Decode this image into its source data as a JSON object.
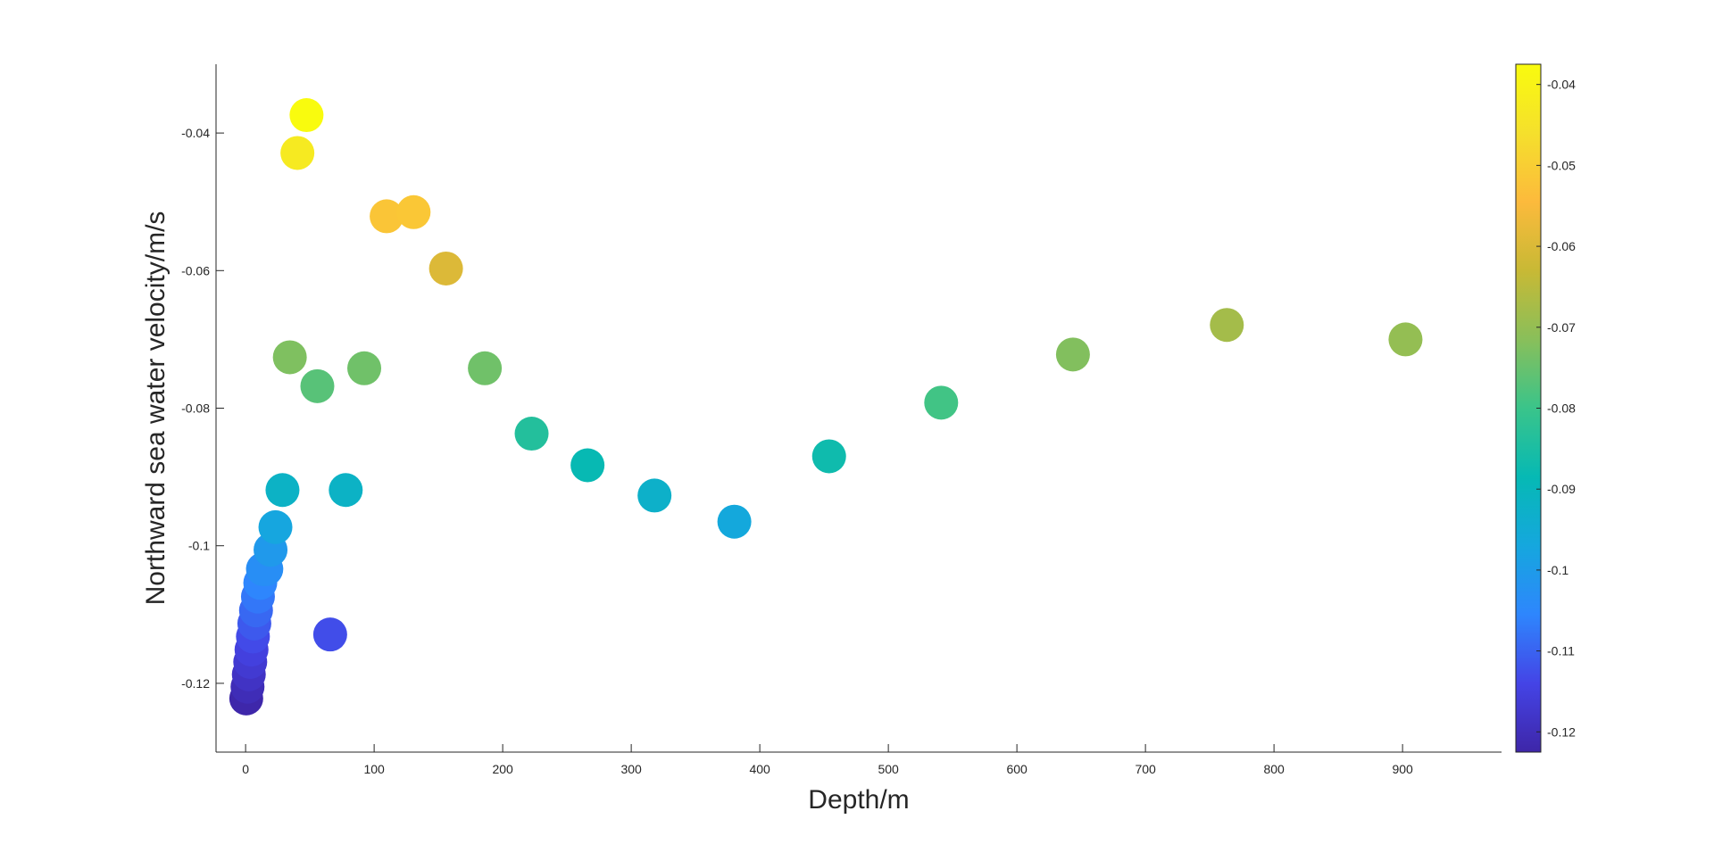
{
  "chart_data": {
    "type": "scatter",
    "title": "",
    "xlabel": "Depth/m",
    "ylabel": "Northward sea water velocity/m/s",
    "xlim": [
      -23,
      977
    ],
    "ylim": [
      -0.13,
      -0.03
    ],
    "xticks": [
      0,
      100,
      200,
      300,
      400,
      500,
      600,
      700,
      800,
      900
    ],
    "xtick_labels": [
      "0",
      "100",
      "200",
      "300",
      "400",
      "500",
      "600",
      "700",
      "800",
      "900"
    ],
    "yticks": [
      -0.12,
      -0.1,
      -0.08,
      -0.06,
      -0.04
    ],
    "ytick_labels": [
      "-0.12",
      "-0.1",
      "-0.08",
      "-0.06",
      "-0.04"
    ],
    "grid": false,
    "colormap": "parula",
    "colorbar": {
      "location": "right",
      "clim": [
        -0.1225,
        -0.0375
      ],
      "ticks": [
        -0.12,
        -0.11,
        -0.1,
        -0.09,
        -0.08,
        -0.07,
        -0.06,
        -0.05,
        -0.04
      ],
      "tick_labels": [
        "-0.12",
        "-0.11",
        "-0.1",
        "-0.09",
        "-0.08",
        "-0.07",
        "-0.06",
        "-0.05",
        "-0.04"
      ]
    },
    "points": [
      {
        "x": 0.5,
        "y": -0.1222
      },
      {
        "x": 1.5,
        "y": -0.1205
      },
      {
        "x": 2.5,
        "y": -0.1187
      },
      {
        "x": 3.6,
        "y": -0.1169
      },
      {
        "x": 4.6,
        "y": -0.1151
      },
      {
        "x": 5.7,
        "y": -0.1132
      },
      {
        "x": 6.8,
        "y": -0.1113
      },
      {
        "x": 8.1,
        "y": -0.1094
      },
      {
        "x": 9.6,
        "y": -0.1074
      },
      {
        "x": 11.4,
        "y": -0.1054
      },
      {
        "x": 13.5,
        "y": -0.1034
      },
      {
        "x": 16.1,
        "y": -0.1034
      },
      {
        "x": 19.4,
        "y": -0.1006
      },
      {
        "x": 23.2,
        "y": -0.0973
      },
      {
        "x": 28.7,
        "y": -0.0919
      },
      {
        "x": 34.4,
        "y": -0.0726
      },
      {
        "x": 40.3,
        "y": -0.0429
      },
      {
        "x": 47.4,
        "y": -0.0374
      },
      {
        "x": 55.8,
        "y": -0.0768
      },
      {
        "x": 65.8,
        "y": -0.1129
      },
      {
        "x": 77.9,
        "y": -0.0919
      },
      {
        "x": 92.3,
        "y": -0.0742
      },
      {
        "x": 109.7,
        "y": -0.0521
      },
      {
        "x": 130.7,
        "y": -0.0515
      },
      {
        "x": 155.9,
        "y": -0.0597
      },
      {
        "x": 186.1,
        "y": -0.0742
      },
      {
        "x": 222.5,
        "y": -0.0837
      },
      {
        "x": 266.0,
        "y": -0.0883
      },
      {
        "x": 318.1,
        "y": -0.0927
      },
      {
        "x": 380.2,
        "y": -0.0965
      },
      {
        "x": 453.9,
        "y": -0.087
      },
      {
        "x": 541.1,
        "y": -0.0792
      },
      {
        "x": 643.6,
        "y": -0.0722
      },
      {
        "x": 763.3,
        "y": -0.0679
      },
      {
        "x": 902.3,
        "y": -0.07
      }
    ]
  },
  "colors": {
    "axis": "#262626",
    "background": "#ffffff",
    "parula_stops": [
      "#3e26a8",
      "#4444e6",
      "#2e86fd",
      "#15a7de",
      "#06b9b4",
      "#3ac48a",
      "#89bf5a",
      "#c8b935",
      "#fcba3c",
      "#f5e02c",
      "#f9fb0e"
    ]
  }
}
